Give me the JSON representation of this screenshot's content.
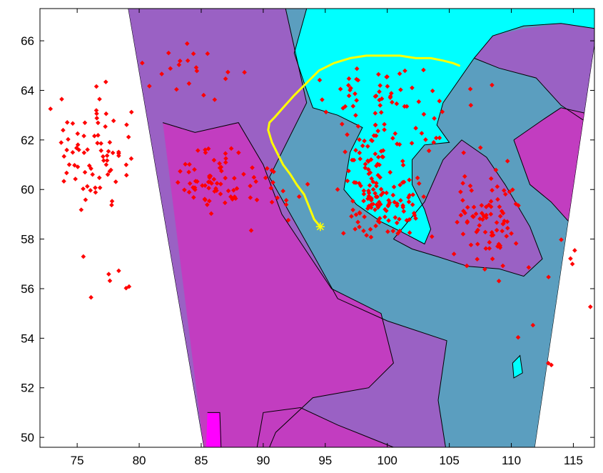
{
  "chart_data": {
    "type": "scatter",
    "title": "",
    "xlabel": "",
    "ylabel": "",
    "xlim": [
      72,
      116.7
    ],
    "ylim": [
      49.6,
      67.3
    ],
    "xticks": [
      75,
      80,
      85,
      90,
      95,
      100,
      105,
      110,
      115
    ],
    "yticks": [
      50,
      52,
      54,
      56,
      58,
      60,
      62,
      64,
      66
    ],
    "xtick_labels": [
      "75",
      "80",
      "85",
      "90",
      "95",
      "100",
      "105",
      "110",
      "115"
    ],
    "ytick_labels": [
      "50",
      "52",
      "54",
      "56",
      "58",
      "60",
      "62",
      "64",
      "66"
    ],
    "grid": false,
    "legend": "none",
    "colors": {
      "level_1": "#5b9ebf",
      "level_2": "#9a61c4",
      "level_3": "#c23dc0",
      "level_4": "#ff00ff",
      "top_level": "#00ffff",
      "points": "#ff0000",
      "track": "#ffff00"
    },
    "track": {
      "x": [
        94.6,
        94.1,
        93.7,
        93.3,
        92.7,
        92.2,
        91.6,
        91.1,
        90.7,
        90.4,
        90.5,
        90.9,
        91.6,
        92.5,
        93.5,
        94.5,
        95.7,
        97.0,
        98.3,
        99.6,
        101.0,
        102.3,
        103.5,
        104.5,
        105.3,
        105.8
      ],
      "y": [
        58.5,
        58.8,
        59.3,
        59.8,
        60.2,
        60.6,
        61.0,
        61.5,
        61.9,
        62.4,
        62.7,
        62.9,
        63.3,
        63.8,
        64.3,
        64.8,
        65.1,
        65.3,
        65.4,
        65.4,
        65.4,
        65.3,
        65.3,
        65.2,
        65.1,
        65.0
      ]
    },
    "track_start_marker": [
      94.6,
      58.5
    ],
    "clusters": [
      {
        "x": 76.5,
        "y": 61.8,
        "sx": 2.0,
        "sy": 1.6,
        "n": 75
      },
      {
        "x": 86.5,
        "y": 60.3,
        "sx": 2.5,
        "sy": 0.9,
        "n": 70
      },
      {
        "x": 99.5,
        "y": 59.4,
        "sx": 2.2,
        "sy": 0.8,
        "n": 95
      },
      {
        "x": 98.5,
        "y": 61.3,
        "sx": 1.6,
        "sy": 1.3,
        "n": 55
      },
      {
        "x": 108.2,
        "y": 58.6,
        "sx": 1.7,
        "sy": 1.4,
        "n": 80
      },
      {
        "x": 99.0,
        "y": 63.9,
        "sx": 3.2,
        "sy": 0.8,
        "n": 40
      },
      {
        "x": 84.0,
        "y": 65.0,
        "sx": 3.0,
        "sy": 0.9,
        "n": 20
      },
      {
        "x": 104.0,
        "y": 62.5,
        "sx": 2.5,
        "sy": 1.5,
        "n": 25
      },
      {
        "x": 77.5,
        "y": 56.5,
        "sx": 1.5,
        "sy": 1.5,
        "n": 7
      },
      {
        "x": 112.5,
        "y": 55.5,
        "sx": 2.5,
        "sy": 2.0,
        "n": 10
      },
      {
        "x": 91.0,
        "y": 59.5,
        "sx": 1.5,
        "sy": 1.0,
        "n": 12
      }
    ],
    "contour_regions": [
      {
        "level": "level_2",
        "polygon": [
          [
            79.1,
            67.3
          ],
          [
            91.8,
            67.3
          ],
          [
            93.5,
            63.5
          ],
          [
            90.5,
            60.5
          ],
          [
            94.0,
            57.4
          ],
          [
            96.0,
            55.6
          ],
          [
            100.0,
            54.7
          ],
          [
            104.8,
            53.9
          ],
          [
            104.1,
            51.5
          ],
          [
            104.7,
            49.6
          ],
          [
            85.2,
            49.6
          ]
        ]
      },
      {
        "level": "level_3",
        "polygon": [
          [
            81.9,
            62.7
          ],
          [
            84.5,
            62.3
          ],
          [
            88.0,
            62.7
          ],
          [
            90.0,
            61.0
          ],
          [
            91.5,
            59.0
          ],
          [
            93.5,
            57.5
          ],
          [
            95.5,
            56.0
          ],
          [
            99.5,
            55.0
          ],
          [
            100.5,
            53.0
          ],
          [
            98.5,
            52.0
          ],
          [
            94.0,
            51.6
          ],
          [
            91.0,
            50.2
          ],
          [
            90.5,
            49.6
          ],
          [
            85.2,
            49.6
          ]
        ]
      },
      {
        "level": "level_3",
        "polygon": [
          [
            89.5,
            49.6
          ],
          [
            90.0,
            51.0
          ],
          [
            93.0,
            51.2
          ],
          [
            96.0,
            50.5
          ],
          [
            99.0,
            49.9
          ],
          [
            100.5,
            49.6
          ]
        ]
      },
      {
        "level": "level_4",
        "polygon": [
          [
            85.5,
            51.0
          ],
          [
            86.5,
            51.0
          ],
          [
            86.6,
            49.6
          ],
          [
            85.4,
            49.6
          ]
        ]
      },
      {
        "level": "level_2",
        "polygon": [
          [
            100.5,
            58.0
          ],
          [
            103.0,
            59.5
          ],
          [
            104.5,
            61.2
          ],
          [
            106.0,
            62.0
          ],
          [
            108.0,
            61.3
          ],
          [
            109.5,
            60.2
          ],
          [
            111.5,
            58.5
          ],
          [
            112.5,
            57.2
          ],
          [
            111.0,
            56.5
          ],
          [
            109.0,
            56.8
          ],
          [
            106.5,
            56.9
          ],
          [
            104.0,
            57.3
          ],
          [
            102.0,
            57.6
          ]
        ]
      },
      {
        "level": "level_2",
        "polygon": [
          [
            115.5,
            67.3
          ],
          [
            116.7,
            67.3
          ],
          [
            116.7,
            62.5
          ],
          [
            114.0,
            63.4
          ],
          [
            112.0,
            64.5
          ],
          [
            109.0,
            64.9
          ],
          [
            107.0,
            65.3
          ],
          [
            108.5,
            66.2
          ],
          [
            111.0,
            66.5
          ],
          [
            114.0,
            66.7
          ]
        ]
      },
      {
        "level": "level_3",
        "polygon": [
          [
            110.2,
            62.0
          ],
          [
            112.5,
            62.8
          ],
          [
            114.0,
            63.3
          ],
          [
            116.7,
            63.0
          ],
          [
            116.7,
            57.5
          ],
          [
            115.0,
            58.5
          ],
          [
            113.2,
            59.5
          ],
          [
            111.5,
            60.2
          ]
        ]
      },
      {
        "level": "top_level",
        "polygon": [
          [
            93.5,
            67.3
          ],
          [
            116.7,
            67.3
          ],
          [
            116.7,
            66.5
          ],
          [
            114.0,
            66.7
          ],
          [
            111.0,
            66.6
          ],
          [
            108.5,
            66.2
          ],
          [
            107.0,
            65.3
          ],
          [
            104.5,
            63.5
          ],
          [
            104.0,
            62.6
          ],
          [
            105.0,
            61.9
          ],
          [
            103.0,
            61.8
          ],
          [
            102.0,
            61.2
          ],
          [
            102.0,
            60.2
          ],
          [
            103.0,
            59.2
          ],
          [
            103.5,
            58.4
          ],
          [
            103.0,
            57.8
          ],
          [
            101.5,
            58.2
          ],
          [
            99.5,
            58.7
          ],
          [
            97.5,
            59.4
          ],
          [
            96.5,
            60.0
          ],
          [
            97.0,
            61.5
          ],
          [
            98.0,
            62.5
          ],
          [
            96.0,
            63.0
          ],
          [
            94.0,
            63.3
          ],
          [
            93.5,
            64.0
          ],
          [
            92.5,
            65.5
          ]
        ]
      },
      {
        "level": "top_level",
        "polygon": [
          [
            110.1,
            53.0
          ],
          [
            110.7,
            53.3
          ],
          [
            110.9,
            52.6
          ],
          [
            110.2,
            52.4
          ]
        ]
      }
    ],
    "contour_lines": [
      [
        [
          93.5,
          67.3
        ],
        [
          92.5,
          65.5
        ],
        [
          93.5,
          64.0
        ],
        [
          94.0,
          63.3
        ],
        [
          96.0,
          63.0
        ],
        [
          98.0,
          62.5
        ],
        [
          97.0,
          61.5
        ],
        [
          96.5,
          60.0
        ],
        [
          97.5,
          59.4
        ],
        [
          99.5,
          58.7
        ],
        [
          101.5,
          58.2
        ],
        [
          103.0,
          57.8
        ],
        [
          103.5,
          58.4
        ],
        [
          103.0,
          59.2
        ],
        [
          102.0,
          60.2
        ],
        [
          102.0,
          61.2
        ],
        [
          103.0,
          61.8
        ],
        [
          105.0,
          61.9
        ],
        [
          104.0,
          62.6
        ],
        [
          104.5,
          63.5
        ],
        [
          107.0,
          65.3
        ],
        [
          108.5,
          66.2
        ],
        [
          111.0,
          66.6
        ],
        [
          114.0,
          66.7
        ],
        [
          116.7,
          66.5
        ]
      ],
      [
        [
          91.8,
          67.3
        ],
        [
          93.5,
          63.5
        ],
        [
          90.5,
          60.5
        ],
        [
          94.0,
          57.4
        ],
        [
          96.0,
          55.6
        ],
        [
          100.0,
          54.7
        ],
        [
          104.8,
          53.9
        ],
        [
          104.1,
          51.5
        ],
        [
          104.7,
          49.6
        ]
      ],
      [
        [
          81.9,
          62.7
        ],
        [
          84.5,
          62.3
        ],
        [
          88.0,
          62.7
        ],
        [
          90.0,
          61.0
        ],
        [
          91.5,
          59.0
        ],
        [
          93.5,
          57.5
        ],
        [
          95.5,
          56.0
        ],
        [
          99.5,
          55.0
        ],
        [
          100.5,
          53.0
        ],
        [
          98.5,
          52.0
        ],
        [
          94.0,
          51.6
        ],
        [
          91.0,
          50.2
        ],
        [
          90.5,
          49.6
        ]
      ],
      [
        [
          89.5,
          49.6
        ],
        [
          90.0,
          51.0
        ],
        [
          93.0,
          51.2
        ],
        [
          96.0,
          50.5
        ],
        [
          99.0,
          49.9
        ],
        [
          100.5,
          49.6
        ]
      ],
      [
        [
          100.5,
          58.0
        ],
        [
          103.0,
          59.5
        ],
        [
          104.5,
          61.2
        ],
        [
          106.0,
          62.0
        ],
        [
          108.0,
          61.3
        ],
        [
          109.5,
          60.2
        ],
        [
          111.5,
          58.5
        ],
        [
          112.5,
          57.2
        ],
        [
          111.0,
          56.5
        ],
        [
          109.0,
          56.8
        ],
        [
          106.5,
          56.9
        ],
        [
          104.0,
          57.3
        ],
        [
          102.0,
          57.6
        ],
        [
          100.5,
          58.0
        ]
      ],
      [
        [
          107.0,
          65.3
        ],
        [
          109.0,
          64.9
        ],
        [
          112.0,
          64.5
        ],
        [
          114.0,
          63.4
        ],
        [
          116.7,
          62.5
        ]
      ],
      [
        [
          110.2,
          62.0
        ],
        [
          112.5,
          62.8
        ],
        [
          114.0,
          63.3
        ],
        [
          116.7,
          63.0
        ]
      ],
      [
        [
          110.2,
          62.0
        ],
        [
          111.5,
          60.2
        ],
        [
          113.2,
          59.5
        ],
        [
          115.0,
          58.5
        ],
        [
          116.7,
          57.5
        ]
      ],
      [
        [
          85.5,
          51.0
        ],
        [
          86.5,
          51.0
        ],
        [
          86.6,
          49.6
        ]
      ],
      [
        [
          110.1,
          53.0
        ],
        [
          110.7,
          53.3
        ],
        [
          110.9,
          52.6
        ],
        [
          110.2,
          52.4
        ],
        [
          110.1,
          53.0
        ]
      ]
    ],
    "domain_polygon": [
      [
        79.1,
        67.3
      ],
      [
        116.7,
        67.3
      ],
      [
        116.7,
        65.8
      ],
      [
        111.9,
        49.6
      ],
      [
        85.2,
        49.6
      ]
    ]
  }
}
